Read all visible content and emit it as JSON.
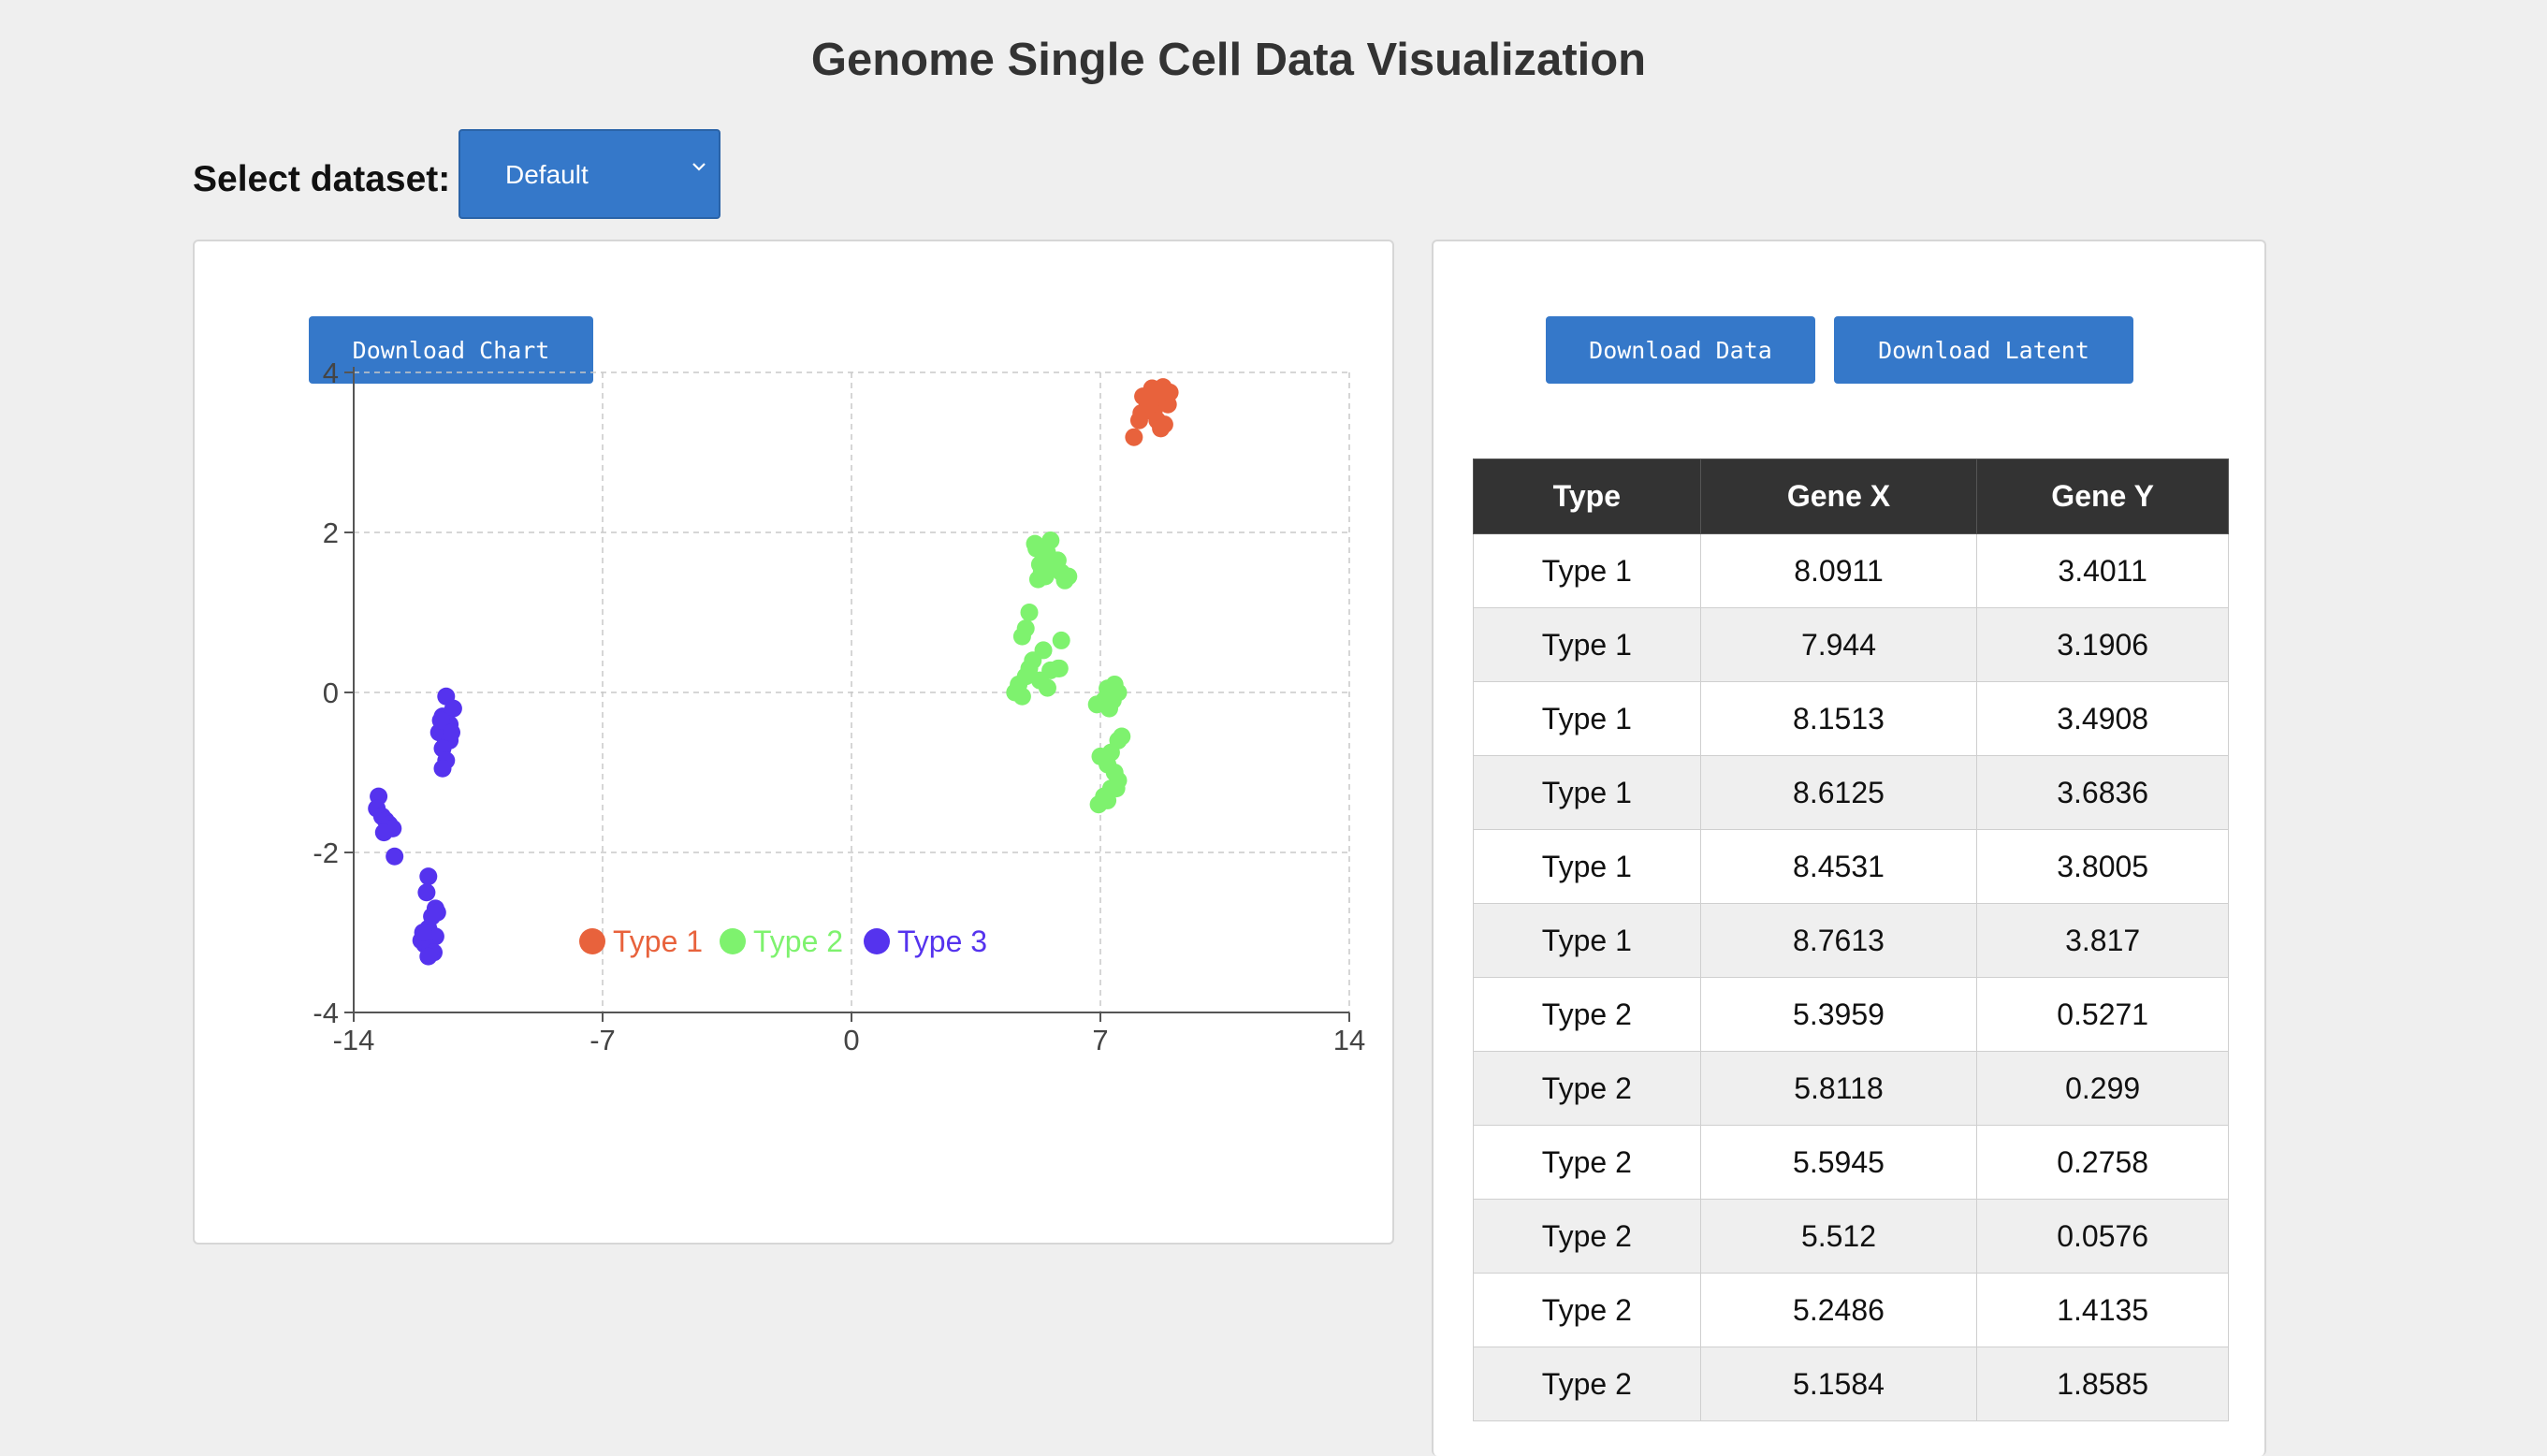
{
  "page": {
    "title": "Genome Single Cell Data Visualization"
  },
  "dataset": {
    "label": "Select dataset:",
    "selected": "Default"
  },
  "buttons": {
    "download_chart": "Download Chart",
    "download_data": "Download Data",
    "download_latent": "Download Latent"
  },
  "colors": {
    "type1": "#e8623c",
    "type2": "#7ef26e",
    "type3": "#5533ee",
    "button": "#3578c9"
  },
  "table": {
    "headers": [
      "Type",
      "Gene X",
      "Gene Y"
    ],
    "rows": [
      [
        "Type 1",
        "8.0911",
        "3.4011"
      ],
      [
        "Type 1",
        "7.944",
        "3.1906"
      ],
      [
        "Type 1",
        "8.1513",
        "3.4908"
      ],
      [
        "Type 1",
        "8.6125",
        "3.6836"
      ],
      [
        "Type 1",
        "8.4531",
        "3.8005"
      ],
      [
        "Type 1",
        "8.7613",
        "3.817"
      ],
      [
        "Type 2",
        "5.3959",
        "0.5271"
      ],
      [
        "Type 2",
        "5.8118",
        "0.299"
      ],
      [
        "Type 2",
        "5.5945",
        "0.2758"
      ],
      [
        "Type 2",
        "5.512",
        "0.0576"
      ],
      [
        "Type 2",
        "5.2486",
        "1.4135"
      ],
      [
        "Type 2",
        "5.1584",
        "1.8585"
      ]
    ]
  },
  "chart_data": {
    "type": "scatter",
    "title": "",
    "xlabel": "",
    "ylabel": "",
    "xlim": [
      -14,
      14
    ],
    "ylim": [
      -4,
      4
    ],
    "xticks": [
      -14,
      -7,
      0,
      7,
      14
    ],
    "yticks": [
      4,
      2,
      0,
      -2,
      -4
    ],
    "grid": true,
    "legend_position": "bottom-center",
    "series": [
      {
        "name": "Type 1",
        "color": "#e8623c",
        "points": [
          [
            8.0911,
            3.4011
          ],
          [
            7.944,
            3.1906
          ],
          [
            8.1513,
            3.4908
          ],
          [
            8.6125,
            3.6836
          ],
          [
            8.4531,
            3.8005
          ],
          [
            8.7613,
            3.817
          ],
          [
            8.5,
            3.5
          ],
          [
            8.9,
            3.6
          ],
          [
            8.8,
            3.35
          ],
          [
            8.3,
            3.55
          ],
          [
            8.6,
            3.4
          ],
          [
            8.2,
            3.7
          ],
          [
            8.95,
            3.75
          ],
          [
            8.7,
            3.3
          ],
          [
            8.4,
            3.6
          ]
        ]
      },
      {
        "name": "Type 2",
        "color": "#7ef26e",
        "points": [
          [
            5.3959,
            0.5271
          ],
          [
            5.8118,
            0.299
          ],
          [
            5.5945,
            0.2758
          ],
          [
            5.512,
            0.0576
          ],
          [
            5.2486,
            1.4135
          ],
          [
            5.1584,
            1.8585
          ],
          [
            4.9,
            0.8
          ],
          [
            5.0,
            1.0
          ],
          [
            4.8,
            0.7
          ],
          [
            5.1,
            0.4
          ],
          [
            4.7,
            0.1
          ],
          [
            4.9,
            0.2
          ],
          [
            4.6,
            0.0
          ],
          [
            5.0,
            0.3
          ],
          [
            4.8,
            -0.05
          ],
          [
            5.3,
            0.15
          ],
          [
            5.9,
            0.65
          ],
          [
            5.85,
            0.3
          ],
          [
            5.3,
            1.6
          ],
          [
            5.5,
            1.75
          ],
          [
            5.7,
            1.55
          ],
          [
            5.6,
            1.9
          ],
          [
            5.9,
            1.5
          ],
          [
            5.45,
            1.45
          ],
          [
            6.1,
            1.45
          ],
          [
            5.8,
            1.65
          ],
          [
            5.2,
            1.8
          ],
          [
            5.35,
            1.5
          ],
          [
            6.0,
            1.4
          ],
          [
            5.55,
            1.6
          ],
          [
            7.2,
            0.05
          ],
          [
            7.35,
            -0.1
          ],
          [
            7.5,
            0.0
          ],
          [
            6.9,
            -0.15
          ],
          [
            7.1,
            -0.1
          ],
          [
            7.4,
            0.1
          ],
          [
            7.25,
            -0.2
          ],
          [
            7.0,
            -0.8
          ],
          [
            7.3,
            -0.75
          ],
          [
            7.5,
            -0.6
          ],
          [
            7.6,
            -0.55
          ],
          [
            7.2,
            -0.9
          ],
          [
            7.4,
            -1.0
          ],
          [
            7.3,
            -1.2
          ],
          [
            7.5,
            -1.1
          ],
          [
            7.1,
            -1.3
          ],
          [
            6.95,
            -1.4
          ],
          [
            7.2,
            -1.35
          ],
          [
            7.45,
            -1.2
          ]
        ]
      },
      {
        "name": "Type 3",
        "color": "#5533ee",
        "points": [
          [
            -11.4,
            -0.05
          ],
          [
            -11.5,
            -0.3
          ],
          [
            -11.2,
            -0.2
          ],
          [
            -11.3,
            -0.4
          ],
          [
            -11.6,
            -0.5
          ],
          [
            -11.45,
            -0.55
          ],
          [
            -11.3,
            -0.6
          ],
          [
            -11.5,
            -0.7
          ],
          [
            -11.4,
            -0.85
          ],
          [
            -11.5,
            -0.95
          ],
          [
            -11.55,
            -0.35
          ],
          [
            -11.25,
            -0.5
          ],
          [
            -13.3,
            -1.3
          ],
          [
            -13.35,
            -1.45
          ],
          [
            -13.2,
            -1.55
          ],
          [
            -13.1,
            -1.6
          ],
          [
            -13.0,
            -1.65
          ],
          [
            -12.9,
            -1.7
          ],
          [
            -13.15,
            -1.75
          ],
          [
            -12.85,
            -2.05
          ],
          [
            -11.9,
            -2.3
          ],
          [
            -11.95,
            -2.5
          ],
          [
            -11.7,
            -2.7
          ],
          [
            -11.8,
            -2.8
          ],
          [
            -11.65,
            -2.75
          ],
          [
            -11.9,
            -2.95
          ],
          [
            -11.7,
            -3.05
          ],
          [
            -12.1,
            -3.1
          ],
          [
            -12.0,
            -3.15
          ],
          [
            -11.85,
            -3.2
          ],
          [
            -11.75,
            -3.25
          ],
          [
            -11.9,
            -3.3
          ],
          [
            -12.05,
            -3.0
          ]
        ]
      }
    ]
  }
}
